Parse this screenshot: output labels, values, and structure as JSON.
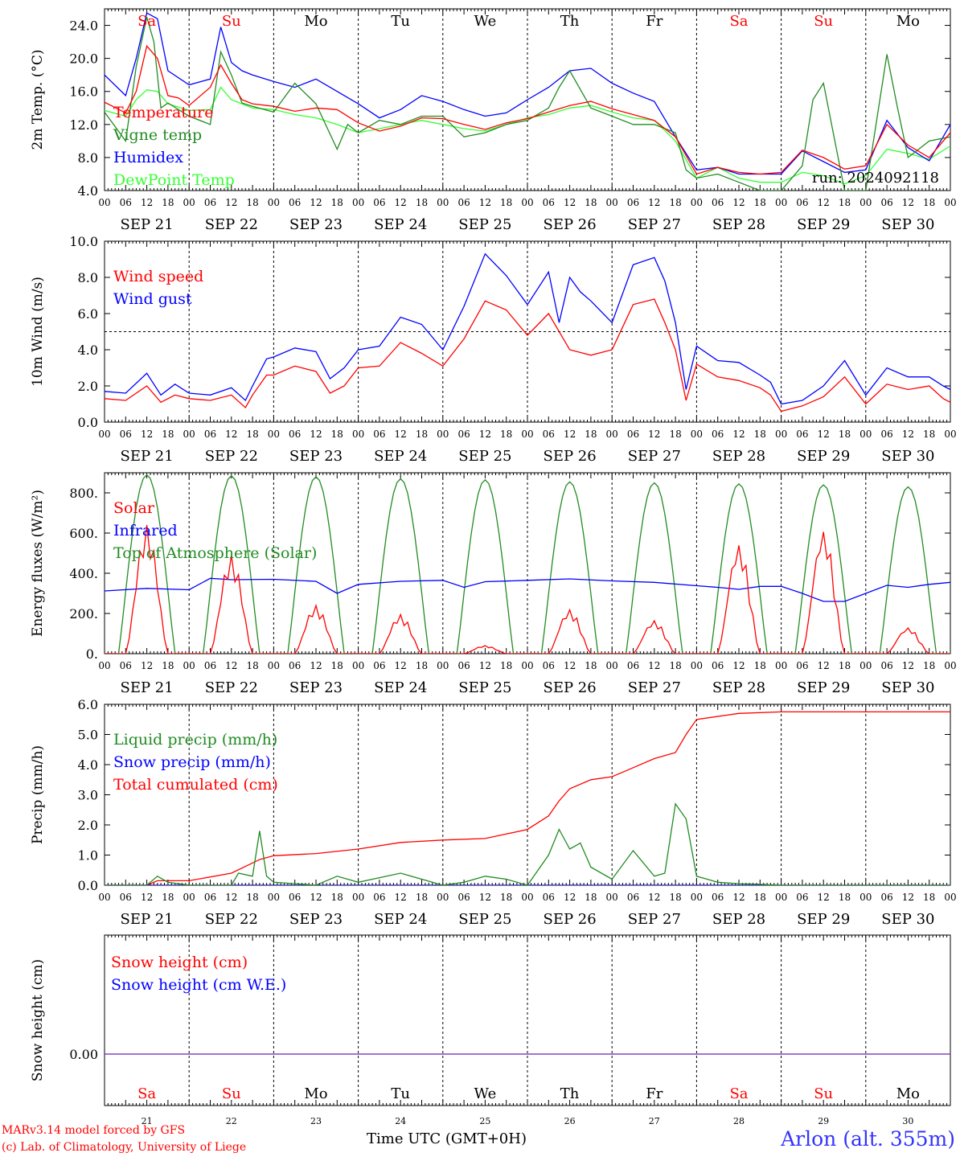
{
  "colors": {
    "red": "#ff0000",
    "darkgreen": "#228b22",
    "blue": "#0000ff",
    "lightgreen": "#33ff33",
    "purple": "#7f3fbf",
    "weekend": "#ff0000",
    "weekday": "#000000"
  },
  "run_label": "run: 2024092118",
  "days": [
    {
      "abbr": "Sa",
      "weekend": true,
      "date": "SEP 21",
      "num": "21"
    },
    {
      "abbr": "Su",
      "weekend": true,
      "date": "SEP 22",
      "num": "22"
    },
    {
      "abbr": "Mo",
      "weekend": false,
      "date": "SEP 23",
      "num": "23"
    },
    {
      "abbr": "Tu",
      "weekend": false,
      "date": "SEP 24",
      "num": "24"
    },
    {
      "abbr": "We",
      "weekend": false,
      "date": "SEP 25",
      "num": "25"
    },
    {
      "abbr": "Th",
      "weekend": false,
      "date": "SEP 26",
      "num": "26"
    },
    {
      "abbr": "Fr",
      "weekend": false,
      "date": "SEP 27",
      "num": "27"
    },
    {
      "abbr": "Sa",
      "weekend": true,
      "date": "SEP 28",
      "num": "28"
    },
    {
      "abbr": "Su",
      "weekend": true,
      "date": "SEP 29",
      "num": "29"
    },
    {
      "abbr": "Mo",
      "weekend": false,
      "date": "SEP 30",
      "num": "30"
    }
  ],
  "hour_ticks": [
    "00",
    "06",
    "12",
    "18"
  ],
  "chart_data": [
    {
      "type": "line",
      "ylabel": "2m Temp. (°C)",
      "ylim": [
        4,
        26
      ],
      "yticks": [
        "4.0",
        "8.0",
        "12.0",
        "16.0",
        "20.0",
        "24.0"
      ],
      "ytick_values": [
        4,
        8,
        12,
        16,
        20,
        24
      ],
      "x_unit": "hours since SEP 21 00 UTC",
      "series": [
        {
          "name": "Temperature",
          "color": "red",
          "x": [
            0,
            6,
            9,
            12,
            15,
            18,
            21,
            24,
            30,
            33,
            36,
            39,
            42,
            48,
            54,
            60,
            66,
            72,
            78,
            84,
            90,
            96,
            102,
            108,
            114,
            120,
            126,
            132,
            138,
            144,
            150,
            156,
            162,
            168,
            174,
            180,
            186,
            192,
            198,
            204,
            210,
            216,
            222,
            228,
            234,
            240
          ],
          "y": [
            14.7,
            13.4,
            16,
            21.5,
            20,
            15.5,
            15.2,
            14.3,
            16.5,
            19.2,
            17,
            15,
            14.5,
            14.2,
            13.6,
            14,
            13.8,
            12.2,
            11.2,
            11.8,
            12.8,
            12.7,
            12,
            11.4,
            12.2,
            12.7,
            13.5,
            14.3,
            14.8,
            13.9,
            13.2,
            12.5,
            10.5,
            6,
            6.8,
            6.2,
            6,
            6.2,
            8.9,
            8,
            6.6,
            7,
            12,
            9.5,
            8,
            11
          ]
        },
        {
          "name": "Vigne temp",
          "color": "darkgreen",
          "x": [
            0,
            6,
            9,
            12,
            14,
            16,
            18,
            24,
            30,
            33,
            36,
            39,
            42,
            48,
            54,
            60,
            66,
            69,
            72,
            78,
            84,
            90,
            96,
            102,
            108,
            114,
            120,
            126,
            129,
            132,
            138,
            144,
            150,
            156,
            162,
            165,
            168,
            174,
            180,
            186,
            192,
            198,
            201,
            204,
            210,
            216,
            222,
            225,
            228,
            234,
            240
          ],
          "y": [
            13.5,
            10,
            19,
            25,
            22,
            14,
            14.6,
            13,
            12,
            20.8,
            18,
            14.6,
            14.2,
            13.5,
            17,
            14.5,
            9,
            12,
            11,
            12.5,
            12,
            13,
            13,
            10.5,
            11,
            12,
            12.5,
            14,
            16.5,
            18.5,
            14,
            13,
            12,
            12,
            11,
            6.5,
            5.5,
            6,
            5,
            4,
            4,
            7,
            15,
            17,
            4,
            4,
            20.5,
            14,
            8,
            10,
            10.5
          ]
        },
        {
          "name": "Humidex",
          "color": "blue",
          "x": [
            0,
            6,
            9,
            12,
            15,
            18,
            24,
            30,
            33,
            36,
            39,
            42,
            48,
            54,
            60,
            66,
            72,
            78,
            84,
            90,
            96,
            102,
            108,
            114,
            120,
            126,
            132,
            138,
            144,
            150,
            156,
            162,
            168,
            174,
            180,
            186,
            192,
            198,
            204,
            210,
            216,
            222,
            228,
            234,
            240
          ],
          "y": [
            18,
            15.5,
            20,
            25.5,
            24.8,
            18.5,
            16.8,
            17.5,
            23.8,
            19.5,
            18.5,
            18,
            17.2,
            16.5,
            17.5,
            16,
            14.5,
            12.8,
            13.8,
            15.5,
            14.8,
            13.8,
            13,
            13.4,
            15,
            16.5,
            18.5,
            18.8,
            17,
            15.8,
            14.8,
            10.5,
            6.5,
            6.8,
            6,
            6,
            6,
            8.8,
            7.5,
            6.2,
            6.5,
            12.5,
            9.2,
            7.6,
            12
          ]
        },
        {
          "name": "DewPoint Temp",
          "color": "lightgreen",
          "x": [
            0,
            6,
            9,
            12,
            15,
            18,
            24,
            30,
            33,
            36,
            42,
            48,
            54,
            60,
            66,
            72,
            78,
            84,
            90,
            96,
            102,
            108,
            114,
            120,
            126,
            132,
            138,
            144,
            150,
            156,
            162,
            168,
            174,
            180,
            186,
            192,
            198,
            204,
            210,
            216,
            222,
            228,
            234,
            240
          ],
          "y": [
            13.7,
            13,
            15,
            16.2,
            16,
            14.5,
            13.7,
            13.8,
            16.5,
            15,
            14,
            13.8,
            13.2,
            12.8,
            12,
            11,
            11.5,
            12,
            12.5,
            12,
            11.5,
            11.2,
            12,
            12.8,
            13.2,
            14,
            14.3,
            13.5,
            12.8,
            12.5,
            10,
            5.5,
            6.8,
            5.5,
            5,
            5,
            6.2,
            5.8,
            4.8,
            5.8,
            9,
            8.5,
            7.8,
            9.4
          ]
        }
      ]
    },
    {
      "type": "line",
      "ylabel": "10m Wind (m/s)",
      "ylim": [
        0,
        10
      ],
      "yticks": [
        "0.0",
        "2.0",
        "4.0",
        "6.0",
        "8.0",
        "10.0"
      ],
      "ytick_values": [
        0,
        2,
        4,
        6,
        8,
        10
      ],
      "hline": 5,
      "series": [
        {
          "name": "Wind speed",
          "color": "red",
          "x": [
            0,
            6,
            12,
            16,
            20,
            24,
            30,
            36,
            40,
            42,
            46,
            48,
            54,
            60,
            64,
            68,
            72,
            78,
            84,
            90,
            96,
            102,
            108,
            114,
            120,
            126,
            132,
            138,
            144,
            150,
            156,
            159,
            162,
            165,
            168,
            174,
            180,
            186,
            189,
            192,
            198,
            204,
            210,
            216,
            222,
            228,
            234,
            238,
            240
          ],
          "y": [
            1.3,
            1.2,
            2.0,
            1.1,
            1.5,
            1.3,
            1.2,
            1.5,
            0.8,
            1.5,
            2.6,
            2.6,
            3.1,
            2.8,
            1.6,
            2.0,
            3.0,
            3.1,
            4.4,
            3.8,
            3.1,
            4.6,
            6.7,
            6.2,
            4.8,
            6.0,
            4.0,
            3.7,
            4.0,
            6.5,
            6.8,
            5.5,
            4.0,
            1.2,
            3.2,
            2.5,
            2.3,
            1.9,
            1.5,
            0.6,
            0.9,
            1.4,
            2.5,
            1.0,
            2.1,
            1.8,
            2.0,
            1.3,
            1.1
          ]
        },
        {
          "name": "Wind gust",
          "color": "blue",
          "x": [
            0,
            6,
            12,
            16,
            20,
            24,
            30,
            36,
            40,
            42,
            46,
            48,
            54,
            60,
            64,
            68,
            72,
            78,
            84,
            90,
            96,
            102,
            108,
            114,
            120,
            126,
            129,
            132,
            135,
            138,
            144,
            150,
            156,
            159,
            162,
            165,
            168,
            174,
            180,
            186,
            189,
            192,
            198,
            204,
            210,
            216,
            222,
            228,
            234,
            238,
            240
          ],
          "y": [
            1.7,
            1.6,
            2.7,
            1.5,
            2.1,
            1.6,
            1.5,
            1.9,
            1.2,
            2.0,
            3.5,
            3.6,
            4.1,
            3.9,
            2.4,
            3.0,
            4.0,
            4.2,
            5.8,
            5.4,
            4.0,
            6.4,
            9.3,
            8.1,
            6.5,
            8.3,
            5.5,
            8.0,
            7.2,
            6.7,
            5.5,
            8.7,
            9.1,
            7.8,
            5.5,
            1.8,
            4.2,
            3.4,
            3.3,
            2.6,
            2.2,
            1.0,
            1.2,
            2.0,
            3.4,
            1.5,
            3.0,
            2.5,
            2.5,
            2.0,
            1.8
          ]
        }
      ]
    },
    {
      "type": "line",
      "ylabel": "Energy fluxes (W/m²)",
      "ylim": [
        0,
        900
      ],
      "yticks": [
        "0.",
        "200.",
        "400.",
        "600.",
        "800."
      ],
      "ytick_values": [
        0,
        200,
        400,
        600,
        800
      ],
      "series": [
        {
          "name": "Solar",
          "color": "red",
          "peaks": [
            640,
            490,
            240,
            195,
            40,
            220,
            165,
            545,
            615,
            130
          ]
        },
        {
          "name": "Infrared",
          "color": "blue",
          "x": [
            0,
            12,
            24,
            30,
            36,
            48,
            60,
            66,
            72,
            84,
            96,
            102,
            108,
            120,
            132,
            144,
            156,
            168,
            174,
            180,
            186,
            192,
            198,
            204,
            210,
            216,
            222,
            228,
            234,
            240
          ],
          "y": [
            312,
            325,
            318,
            375,
            368,
            370,
            360,
            300,
            345,
            360,
            365,
            330,
            358,
            365,
            372,
            362,
            355,
            338,
            330,
            320,
            335,
            335,
            300,
            260,
            260,
            300,
            340,
            330,
            345,
            355
          ]
        },
        {
          "name": "Top of Atmosphere (Solar)",
          "color": "darkgreen",
          "peaks": [
            890,
            885,
            880,
            870,
            865,
            855,
            850,
            845,
            840,
            830
          ]
        }
      ]
    },
    {
      "type": "line",
      "ylabel": "Precip (mm/h)",
      "ylim": [
        0,
        6
      ],
      "yticks": [
        "0.0",
        "1.0",
        "2.0",
        "3.0",
        "4.0",
        "5.0",
        "6.0"
      ],
      "ytick_values": [
        0,
        1,
        2,
        3,
        4,
        5,
        6
      ],
      "series": [
        {
          "name": "Liquid precip (mm/h)",
          "color": "darkgreen",
          "x": [
            0,
            12,
            15,
            18,
            24,
            36,
            38,
            42,
            44,
            46,
            48,
            54,
            60,
            66,
            72,
            84,
            96,
            102,
            108,
            114,
            120,
            126,
            129,
            132,
            135,
            138,
            144,
            150,
            156,
            159,
            162,
            165,
            168,
            171,
            174,
            180,
            186,
            192,
            198,
            204,
            210,
            216,
            222,
            228,
            234,
            240
          ],
          "y": [
            0,
            0,
            0.3,
            0.1,
            0,
            0,
            0.4,
            0.3,
            1.8,
            0.3,
            0.1,
            0.05,
            0,
            0.3,
            0.1,
            0.4,
            0,
            0.1,
            0.3,
            0.2,
            0,
            1.0,
            1.85,
            1.2,
            1.4,
            0.6,
            0.2,
            1.15,
            0.3,
            0.4,
            2.7,
            2.2,
            0.3,
            0.2,
            0.1,
            0.05,
            0.03,
            0,
            0,
            0,
            0,
            0,
            0,
            0,
            0,
            0
          ]
        },
        {
          "name": "Snow precip (mm/h)",
          "color": "blue",
          "x": [
            0,
            240
          ],
          "y": [
            0,
            0
          ]
        },
        {
          "name": "Total cumulated (cm)",
          "color": "red",
          "x": [
            0,
            12,
            15,
            24,
            36,
            44,
            48,
            60,
            72,
            84,
            96,
            108,
            114,
            120,
            126,
            129,
            132,
            138,
            144,
            150,
            156,
            162,
            165,
            168,
            180,
            192,
            240
          ],
          "y": [
            0,
            0,
            0.15,
            0.15,
            0.4,
            0.85,
            0.98,
            1.05,
            1.2,
            1.42,
            1.5,
            1.55,
            1.7,
            1.85,
            2.3,
            2.8,
            3.2,
            3.5,
            3.6,
            3.9,
            4.2,
            4.4,
            5.0,
            5.5,
            5.7,
            5.75,
            5.75
          ]
        }
      ]
    },
    {
      "type": "line",
      "ylabel": "Snow height (cm)",
      "yticks": [
        "0.00"
      ],
      "ytick_values": [
        0
      ],
      "series": [
        {
          "name": "Snow height (cm)",
          "color": "red",
          "x": [
            0,
            240
          ],
          "y": [
            0,
            0
          ]
        },
        {
          "name": "Snow height (cm W.E.)",
          "color": "blue",
          "x": [
            0,
            240
          ],
          "y": [
            0,
            0
          ]
        }
      ]
    }
  ],
  "footer": {
    "model": "MARv3.14 model forced by GFS",
    "lab": "(c) Lab. of Climatology, University of Liege",
    "xlabel": "Time UTC (GMT+0H)",
    "station": "Arlon (alt. 355m)"
  }
}
